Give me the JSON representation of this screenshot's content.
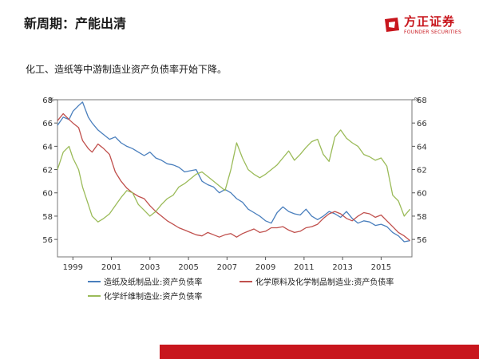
{
  "header": {
    "title": "新周期：产能出清",
    "logo_text": "方正证券",
    "logo_sub": "FOUNDER SECURITIES"
  },
  "subtitle": "化工、造纸等中游制造业资产负债率开始下降。",
  "colors": {
    "brand": "#c8161d",
    "paper": "#4a7fbd",
    "chem": "#c0504d",
    "fiber": "#9bbb59"
  },
  "chart_data": {
    "type": "line",
    "ylim": [
      54.5,
      68
    ],
    "yticks": [
      56,
      58,
      60,
      62,
      64,
      66,
      68
    ],
    "xlim": [
      1998.2,
      2016.6
    ],
    "xticks": [
      "1999",
      "2001",
      "2003",
      "2005",
      "2007",
      "2009",
      "2011",
      "2013",
      "2015"
    ],
    "left_unit": "%",
    "right_unit": "%",
    "grid": false,
    "legend_position": "bottom",
    "series": [
      {
        "name": "造纸及纸制品业:资产负债率",
        "color": "#4a7fbd",
        "x": [
          1998.2,
          1998.5,
          1998.8,
          1999.0,
          1999.3,
          1999.5,
          1999.8,
          2000.0,
          2000.3,
          2000.6,
          2000.9,
          2001.2,
          2001.5,
          2001.8,
          2002.1,
          2002.4,
          2002.7,
          2003.0,
          2003.3,
          2003.6,
          2003.9,
          2004.2,
          2004.5,
          2004.8,
          2005.1,
          2005.4,
          2005.7,
          2006.0,
          2006.3,
          2006.6,
          2006.9,
          2007.2,
          2007.5,
          2007.8,
          2008.1,
          2008.4,
          2008.7,
          2009.0,
          2009.3,
          2009.6,
          2009.9,
          2010.2,
          2010.5,
          2010.8,
          2011.1,
          2011.4,
          2011.7,
          2012.0,
          2012.3,
          2012.6,
          2012.9,
          2013.2,
          2013.5,
          2013.8,
          2014.1,
          2014.4,
          2014.7,
          2015.0,
          2015.3,
          2015.6,
          2015.9,
          2016.2,
          2016.5
        ],
        "values": [
          65.8,
          66.5,
          66.3,
          67.0,
          67.5,
          67.8,
          66.5,
          66.0,
          65.4,
          65.0,
          64.6,
          64.8,
          64.3,
          64.0,
          63.8,
          63.5,
          63.2,
          63.5,
          63.0,
          62.8,
          62.5,
          62.4,
          62.2,
          61.8,
          61.9,
          62.0,
          61.0,
          60.7,
          60.5,
          60.0,
          60.3,
          60.0,
          59.5,
          59.2,
          58.6,
          58.3,
          58.0,
          57.6,
          57.4,
          58.3,
          58.8,
          58.4,
          58.2,
          58.1,
          58.6,
          58.0,
          57.7,
          58.0,
          58.4,
          58.2,
          57.9,
          58.4,
          57.8,
          57.4,
          57.6,
          57.5,
          57.2,
          57.3,
          57.1,
          56.6,
          56.3,
          55.8,
          55.9
        ]
      },
      {
        "name": "化学原料及化学制品制造业:资产负债率",
        "color": "#c0504d",
        "x": [
          1998.2,
          1998.5,
          1998.8,
          1999.0,
          1999.3,
          1999.5,
          1999.8,
          2000.0,
          2000.3,
          2000.6,
          2000.9,
          2001.2,
          2001.5,
          2001.8,
          2002.1,
          2002.4,
          2002.7,
          2003.0,
          2003.3,
          2003.6,
          2003.9,
          2004.2,
          2004.5,
          2004.8,
          2005.1,
          2005.4,
          2005.7,
          2006.0,
          2006.3,
          2006.6,
          2006.9,
          2007.2,
          2007.5,
          2007.8,
          2008.1,
          2008.4,
          2008.7,
          2009.0,
          2009.3,
          2009.6,
          2009.9,
          2010.2,
          2010.5,
          2010.8,
          2011.1,
          2011.4,
          2011.7,
          2012.0,
          2012.3,
          2012.6,
          2012.9,
          2013.2,
          2013.5,
          2013.8,
          2014.1,
          2014.4,
          2014.7,
          2015.0,
          2015.3,
          2015.6,
          2015.9,
          2016.2,
          2016.5
        ],
        "values": [
          66.2,
          66.8,
          66.3,
          66.0,
          65.6,
          64.5,
          63.8,
          63.5,
          64.2,
          63.8,
          63.3,
          61.8,
          61.0,
          60.4,
          60.0,
          59.7,
          59.5,
          58.9,
          58.4,
          58.0,
          57.6,
          57.3,
          57.0,
          56.8,
          56.6,
          56.4,
          56.3,
          56.6,
          56.4,
          56.2,
          56.4,
          56.5,
          56.2,
          56.5,
          56.7,
          56.9,
          56.6,
          56.7,
          57.0,
          57.0,
          57.1,
          56.8,
          56.6,
          56.7,
          57.0,
          57.1,
          57.3,
          57.8,
          58.2,
          58.4,
          58.2,
          57.8,
          57.6,
          58.0,
          58.3,
          58.2,
          57.9,
          58.1,
          57.6,
          57.1,
          56.6,
          56.3,
          55.9
        ]
      },
      {
        "name": "化学纤维制造业:资产负债率",
        "color": "#9bbb59",
        "x": [
          1998.2,
          1998.5,
          1998.8,
          1999.0,
          1999.3,
          1999.5,
          1999.8,
          2000.0,
          2000.3,
          2000.6,
          2000.9,
          2001.2,
          2001.5,
          2001.8,
          2002.1,
          2002.4,
          2002.7,
          2003.0,
          2003.3,
          2003.6,
          2003.9,
          2004.2,
          2004.5,
          2004.8,
          2005.1,
          2005.4,
          2005.7,
          2006.0,
          2006.3,
          2006.6,
          2006.9,
          2007.2,
          2007.5,
          2007.8,
          2008.1,
          2008.4,
          2008.7,
          2009.0,
          2009.3,
          2009.6,
          2009.9,
          2010.2,
          2010.5,
          2010.8,
          2011.1,
          2011.4,
          2011.7,
          2012.0,
          2012.3,
          2012.6,
          2012.9,
          2013.2,
          2013.5,
          2013.8,
          2014.1,
          2014.4,
          2014.7,
          2015.0,
          2015.3,
          2015.6,
          2015.9,
          2016.2,
          2016.5
        ],
        "values": [
          62.0,
          63.5,
          64.0,
          63.0,
          62.0,
          60.5,
          59.0,
          58.0,
          57.5,
          57.8,
          58.2,
          58.9,
          59.6,
          60.2,
          60.0,
          59.0,
          58.5,
          58.0,
          58.4,
          59.0,
          59.5,
          59.8,
          60.5,
          60.8,
          61.2,
          61.6,
          61.8,
          61.4,
          61.0,
          60.6,
          60.2,
          62.0,
          64.3,
          63.0,
          62.0,
          61.6,
          61.3,
          61.6,
          62.0,
          62.4,
          63.0,
          63.6,
          62.8,
          63.3,
          63.9,
          64.4,
          64.6,
          63.3,
          62.7,
          64.8,
          65.4,
          64.7,
          64.3,
          64.0,
          63.3,
          63.1,
          62.8,
          63.0,
          62.3,
          59.8,
          59.3,
          58.0,
          58.6
        ]
      }
    ]
  }
}
